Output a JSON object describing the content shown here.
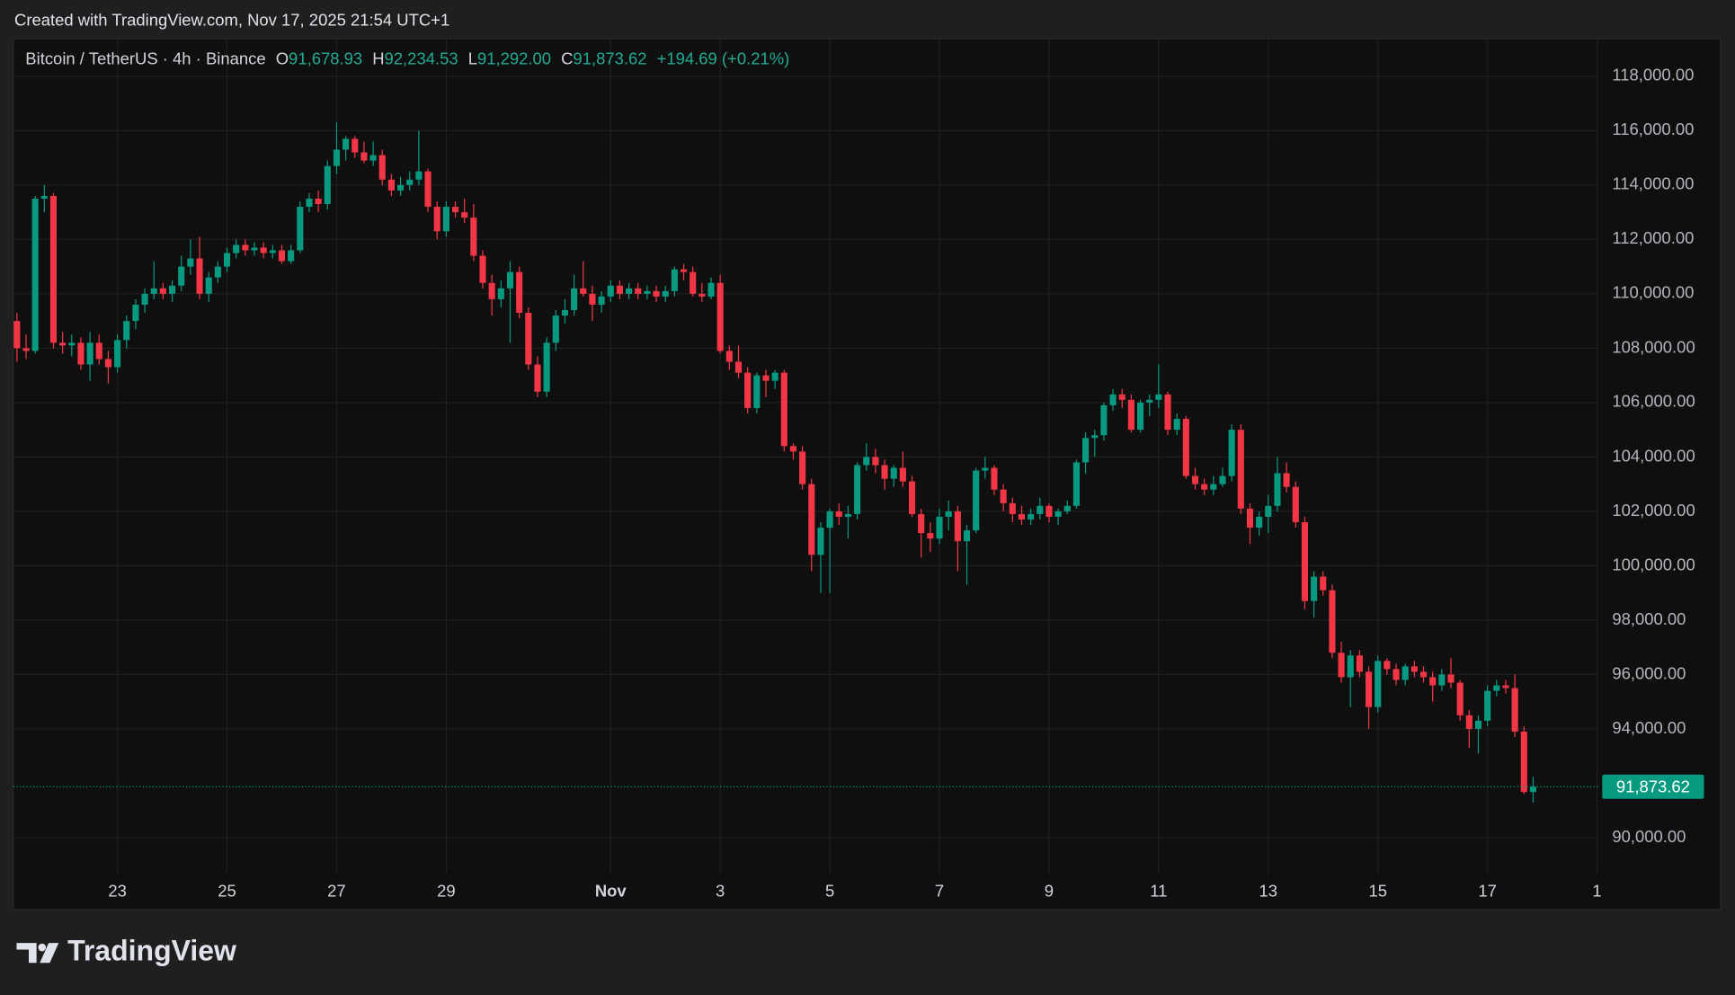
{
  "header": {
    "created": "Created with TradingView.com, Nov 17, 2025 21:54 UTC+1"
  },
  "footer": {
    "brand": "TradingView"
  },
  "chart_data": {
    "type": "candlestick",
    "symbol": "Bitcoin / TetherUS · 4h · Binance",
    "ohlc_header": [
      {
        "key": "O",
        "label": "91,678.93"
      },
      {
        "key": "H",
        "label": "92,234.53"
      },
      {
        "key": "L",
        "label": "91,292.00"
      },
      {
        "key": "C",
        "label": "91,873.62"
      }
    ],
    "change": "+194.69 (+0.21%)",
    "last_price_label": "91,873.62",
    "up_color": "#089981",
    "down_color": "#f23645",
    "grid": true,
    "xlim": [
      -0.4,
      173.2
    ],
    "xticks": [
      {
        "value": 11,
        "label": "23"
      },
      {
        "value": 23,
        "label": "25"
      },
      {
        "value": 35,
        "label": "27"
      },
      {
        "value": 47,
        "label": "29"
      },
      {
        "value": 65,
        "label": "Nov"
      },
      {
        "value": 77,
        "label": "3"
      },
      {
        "value": 89,
        "label": "5"
      },
      {
        "value": 101,
        "label": "7"
      },
      {
        "value": 113,
        "label": "9"
      },
      {
        "value": 125,
        "label": "11"
      },
      {
        "value": 137,
        "label": "13"
      },
      {
        "value": 149,
        "label": "15"
      },
      {
        "value": 161,
        "label": "17"
      },
      {
        "value": 173,
        "label": "1"
      }
    ],
    "ylim": [
      88650,
      119380
    ],
    "yticks": [
      {
        "value": 90000,
        "label": "90,000.00"
      },
      {
        "value": 94000,
        "label": "94,000.00"
      },
      {
        "value": 96000,
        "label": "96,000.00"
      },
      {
        "value": 98000,
        "label": "98,000.00"
      },
      {
        "value": 100000,
        "label": "100,000.00"
      },
      {
        "value": 102000,
        "label": "102,000.00"
      },
      {
        "value": 104000,
        "label": "104,000.00"
      },
      {
        "value": 106000,
        "label": "106,000.00"
      },
      {
        "value": 108000,
        "label": "108,000.00"
      },
      {
        "value": 110000,
        "label": "110,000.00"
      },
      {
        "value": 112000,
        "label": "112,000.00"
      },
      {
        "value": 114000,
        "label": "114,000.00"
      },
      {
        "value": 116000,
        "label": "116,000.00"
      },
      {
        "value": 118000,
        "label": "118,000.00"
      }
    ],
    "open": [
      109000,
      108000,
      107900,
      113500,
      113600,
      108200,
      108100,
      108200,
      107400,
      108200,
      107600,
      107300,
      108300,
      109000,
      109600,
      110000,
      110200,
      110000,
      110300,
      111000,
      111300,
      110000,
      110600,
      111000,
      111500,
      111800,
      111600,
      111700,
      111500,
      111600,
      111200,
      111600,
      113200,
      113500,
      113300,
      114700,
      115300,
      115700,
      115200,
      114900,
      115100,
      114200,
      113800,
      114000,
      114200,
      114500,
      113200,
      112300,
      113200,
      113000,
      112800,
      111400,
      110400,
      109800,
      110200,
      110800,
      109300,
      107400,
      106400,
      108200,
      109200,
      109400,
      110200,
      110000,
      109600,
      109900,
      110300,
      110000,
      110200,
      110000,
      110100,
      109900,
      110100,
      110900,
      110800,
      110000,
      109900,
      110400,
      107900,
      107500,
      107100,
      105800,
      107000,
      106800,
      107100,
      104400,
      104200,
      103000,
      100400,
      101400,
      102000,
      101800,
      101900,
      103700,
      104000,
      103700,
      103200,
      103600,
      103100,
      101900,
      101200,
      101000,
      101800,
      102000,
      100900,
      101300,
      103500,
      103600,
      102800,
      102300,
      101900,
      101700,
      101900,
      102200,
      101800,
      102000,
      102200,
      103800,
      104700,
      104800,
      105900,
      106300,
      106100,
      105000,
      106000,
      106100,
      106300,
      105000,
      105400,
      103300,
      103000,
      102800,
      103000,
      103300,
      105000,
      102100,
      101400,
      101800,
      102200,
      103400,
      102900,
      101600,
      98700,
      99600,
      99100,
      96800,
      95900,
      96700,
      96100,
      94800,
      96500,
      96200,
      95800,
      96300,
      96100,
      95900,
      95600,
      96000,
      95700,
      94500,
      94000,
      94300,
      95400,
      95600,
      95500,
      93900,
      91678.93
    ],
    "high": [
      109300,
      108500,
      113600,
      114000,
      113700,
      108600,
      108500,
      108400,
      108600,
      108500,
      107900,
      108500,
      109200,
      109800,
      110200,
      111200,
      110400,
      110500,
      111400,
      112000,
      112100,
      110800,
      111200,
      111700,
      112000,
      112000,
      111900,
      111900,
      111800,
      111800,
      111800,
      113400,
      113700,
      113800,
      114900,
      116300,
      115800,
      115800,
      115600,
      115600,
      115300,
      114400,
      114300,
      114500,
      116000,
      114600,
      113400,
      113400,
      113400,
      113500,
      113300,
      111600,
      110700,
      110500,
      111200,
      111000,
      109500,
      107700,
      108400,
      109400,
      109800,
      110700,
      111200,
      110300,
      110100,
      110500,
      110500,
      110400,
      110400,
      110300,
      110300,
      110300,
      111000,
      111100,
      111000,
      110400,
      110600,
      110700,
      108100,
      108100,
      107300,
      107100,
      107200,
      107200,
      107200,
      104500,
      104400,
      103200,
      101600,
      102100,
      102300,
      102200,
      103800,
      104500,
      104300,
      103900,
      103700,
      104200,
      103300,
      102100,
      101600,
      102100,
      102400,
      102200,
      101500,
      103600,
      104000,
      103700,
      103000,
      102500,
      102200,
      102100,
      102500,
      102300,
      102100,
      102400,
      103900,
      104900,
      105000,
      106000,
      106500,
      106500,
      106300,
      106100,
      106300,
      107400,
      106400,
      105600,
      105500,
      103600,
      103200,
      103300,
      103600,
      105200,
      105200,
      102300,
      102000,
      102600,
      104000,
      103800,
      103100,
      101800,
      99800,
      99800,
      99300,
      97200,
      96900,
      96900,
      96300,
      96700,
      96600,
      96400,
      96400,
      96500,
      96300,
      96100,
      96200,
      96600,
      95800,
      94700,
      94500,
      95600,
      95800,
      95800,
      96000,
      94100,
      92234.53
    ],
    "low": [
      107500,
      107600,
      107800,
      113000,
      108000,
      107800,
      107700,
      107200,
      106800,
      107400,
      106700,
      107100,
      108000,
      108700,
      109300,
      109800,
      109800,
      109700,
      110100,
      110700,
      109800,
      109700,
      110400,
      110800,
      111300,
      111400,
      111400,
      111300,
      111300,
      111100,
      111100,
      111500,
      113000,
      113000,
      113100,
      114400,
      114900,
      115000,
      114800,
      114700,
      114000,
      113600,
      113600,
      113800,
      114000,
      113000,
      112000,
      112100,
      112800,
      112600,
      111200,
      110200,
      109200,
      109500,
      108200,
      109100,
      107200,
      106200,
      106200,
      107900,
      108900,
      109200,
      109900,
      109000,
      109300,
      109700,
      109800,
      109800,
      109800,
      109800,
      109700,
      109700,
      109900,
      110500,
      109900,
      109700,
      109800,
      107800,
      107200,
      106900,
      105600,
      105600,
      106200,
      106500,
      104200,
      103900,
      102800,
      99800,
      99000,
      99000,
      101500,
      101000,
      101700,
      103500,
      103400,
      102800,
      102900,
      102900,
      101800,
      100300,
      100500,
      100800,
      101300,
      99800,
      99300,
      101200,
      103200,
      102600,
      102000,
      101600,
      101500,
      101500,
      101700,
      101600,
      101500,
      101900,
      102100,
      103400,
      104000,
      104600,
      105700,
      105800,
      104900,
      104900,
      105500,
      105800,
      104800,
      104800,
      103200,
      102800,
      102600,
      102600,
      102900,
      103100,
      101900,
      100800,
      101100,
      101200,
      102000,
      102700,
      101400,
      98400,
      98100,
      98900,
      96600,
      95700,
      94800,
      95900,
      94000,
      94600,
      96000,
      95600,
      95600,
      95900,
      95700,
      95000,
      95400,
      95500,
      94300,
      93300,
      93100,
      94100,
      95200,
      95300,
      93700,
      91600,
      91292
    ],
    "close": [
      108000,
      107900,
      113500,
      113600,
      108200,
      108100,
      108200,
      107400,
      108200,
      107600,
      107300,
      108300,
      109000,
      109600,
      110000,
      110200,
      110000,
      110300,
      111000,
      111300,
      110000,
      110600,
      111000,
      111500,
      111800,
      111600,
      111700,
      111500,
      111600,
      111200,
      111600,
      113200,
      113500,
      113300,
      114700,
      115300,
      115700,
      115200,
      114900,
      115100,
      114200,
      113800,
      114000,
      114200,
      114500,
      113200,
      112300,
      113200,
      113000,
      112800,
      111400,
      110400,
      109800,
      110200,
      110800,
      109300,
      107400,
      106400,
      108200,
      109200,
      109400,
      110200,
      110000,
      109600,
      109900,
      110300,
      110000,
      110200,
      110000,
      110100,
      109900,
      110100,
      110900,
      110800,
      110000,
      109900,
      110400,
      107900,
      107500,
      107100,
      105800,
      107000,
      106800,
      107100,
      104400,
      104200,
      103000,
      100400,
      101400,
      102000,
      101800,
      101900,
      103700,
      104000,
      103700,
      103200,
      103600,
      103100,
      101900,
      101200,
      101000,
      101800,
      102000,
      100900,
      101300,
      103500,
      103600,
      102800,
      102300,
      101900,
      101700,
      101900,
      102200,
      101800,
      102000,
      102200,
      103800,
      104700,
      104800,
      105900,
      106300,
      106100,
      105000,
      106000,
      106100,
      106300,
      105000,
      105400,
      103300,
      103000,
      102800,
      103000,
      103300,
      105000,
      102100,
      101400,
      101800,
      102200,
      103400,
      102900,
      101600,
      98700,
      99600,
      99100,
      96800,
      95900,
      96700,
      96100,
      94800,
      96500,
      96200,
      95800,
      96300,
      96100,
      95900,
      95600,
      96000,
      95700,
      94500,
      94000,
      94300,
      95400,
      95600,
      95500,
      93900,
      91678.93,
      91873.62
    ]
  }
}
